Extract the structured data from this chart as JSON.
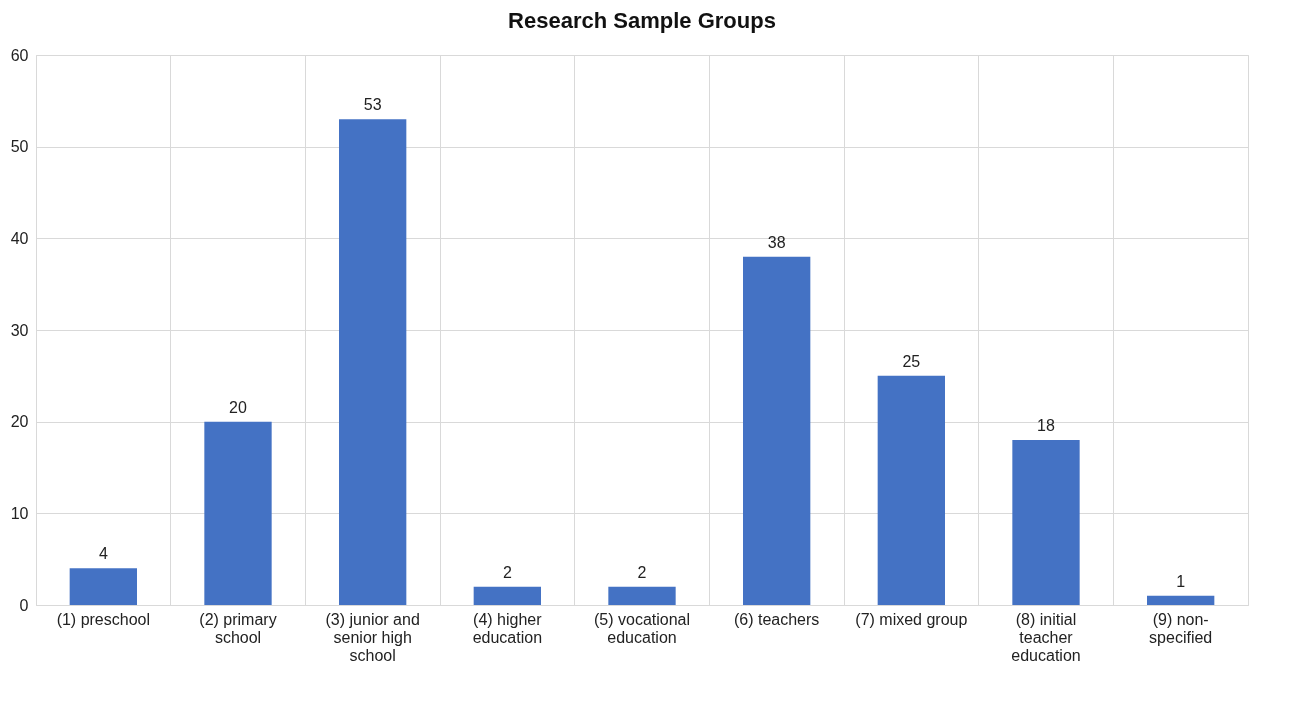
{
  "chart_data": {
    "type": "bar",
    "title": "Research Sample Groups",
    "categories": [
      "(1) preschool",
      "(2) primary school",
      "(3) junior and senior high school",
      "(4) higher education",
      "(5) vocational education",
      "(6) teachers",
      "(7) mixed group",
      "(8) initial teacher education",
      "(9) non-specified"
    ],
    "values": [
      4,
      20,
      53,
      2,
      2,
      38,
      25,
      18,
      1
    ],
    "color": "#4472c4",
    "ylim": [
      0,
      60
    ],
    "yticks": [
      0,
      10,
      20,
      30,
      40,
      50,
      60
    ],
    "grid": true,
    "data_labels": true
  }
}
